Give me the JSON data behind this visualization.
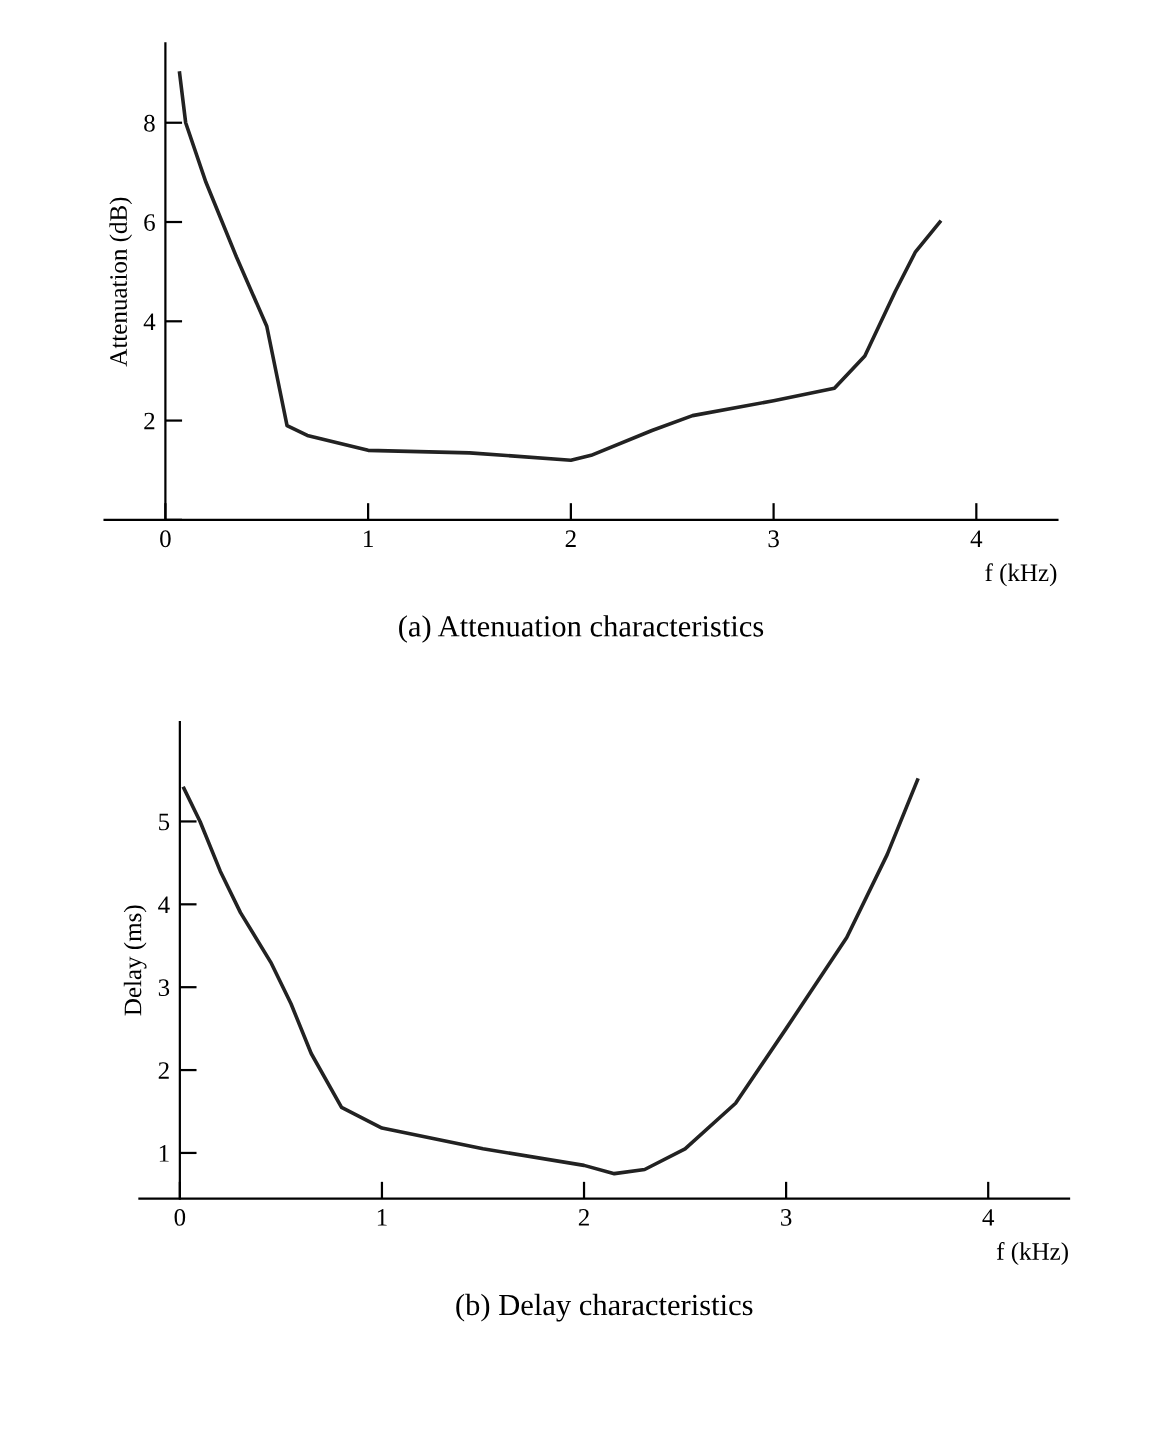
{
  "chart_data": [
    {
      "type": "line",
      "xlabel": "f (kHz)",
      "ylabel": "Attenuation (dB)",
      "annotations": [
        "(a) Attenuation characteristics"
      ],
      "x": [
        0.07,
        0.1,
        0.2,
        0.35,
        0.5,
        0.57,
        0.6,
        0.7,
        1.0,
        1.5,
        2.0,
        2.1,
        2.4,
        2.6,
        3.0,
        3.3,
        3.45,
        3.6,
        3.7,
        3.82
      ],
      "series": [
        {
          "color": "#222222",
          "values": [
            9.0,
            8.0,
            6.8,
            5.3,
            3.9,
            2.5,
            1.9,
            1.7,
            1.4,
            1.35,
            1.2,
            1.3,
            1.8,
            2.1,
            2.4,
            2.65,
            3.3,
            4.6,
            5.4,
            6.0
          ]
        }
      ],
      "xlim": [
        -0.3,
        4.4
      ],
      "ylim": [
        0,
        9.6
      ],
      "xticks": [
        0,
        1,
        2,
        3,
        4
      ],
      "yticks": [
        {
          "value": 0,
          "label": null
        },
        2,
        4,
        6,
        8
      ],
      "grid": false,
      "legend": false
    },
    {
      "type": "line",
      "xlabel": "f (kHz)",
      "ylabel": "Delay (ms)",
      "annotations": [
        "(b) Delay characteristics"
      ],
      "x": [
        0.02,
        0.1,
        0.2,
        0.3,
        0.45,
        0.55,
        0.65,
        0.8,
        1.0,
        1.5,
        2.0,
        2.15,
        2.3,
        2.5,
        2.75,
        3.0,
        3.3,
        3.5,
        3.65
      ],
      "series": [
        {
          "color": "#222222",
          "values": [
            5.4,
            5.0,
            4.4,
            3.9,
            3.3,
            2.8,
            2.2,
            1.55,
            1.3,
            1.05,
            0.85,
            0.75,
            0.8,
            1.05,
            1.6,
            2.5,
            3.6,
            4.6,
            5.5
          ]
        }
      ],
      "xlim": [
        -0.2,
        4.4
      ],
      "ylim": [
        0.45,
        6.2
      ],
      "xticks": [
        0,
        1,
        2,
        3,
        4
      ],
      "yticks": [
        1,
        2,
        3,
        4,
        5
      ],
      "grid": false,
      "legend": false
    }
  ]
}
